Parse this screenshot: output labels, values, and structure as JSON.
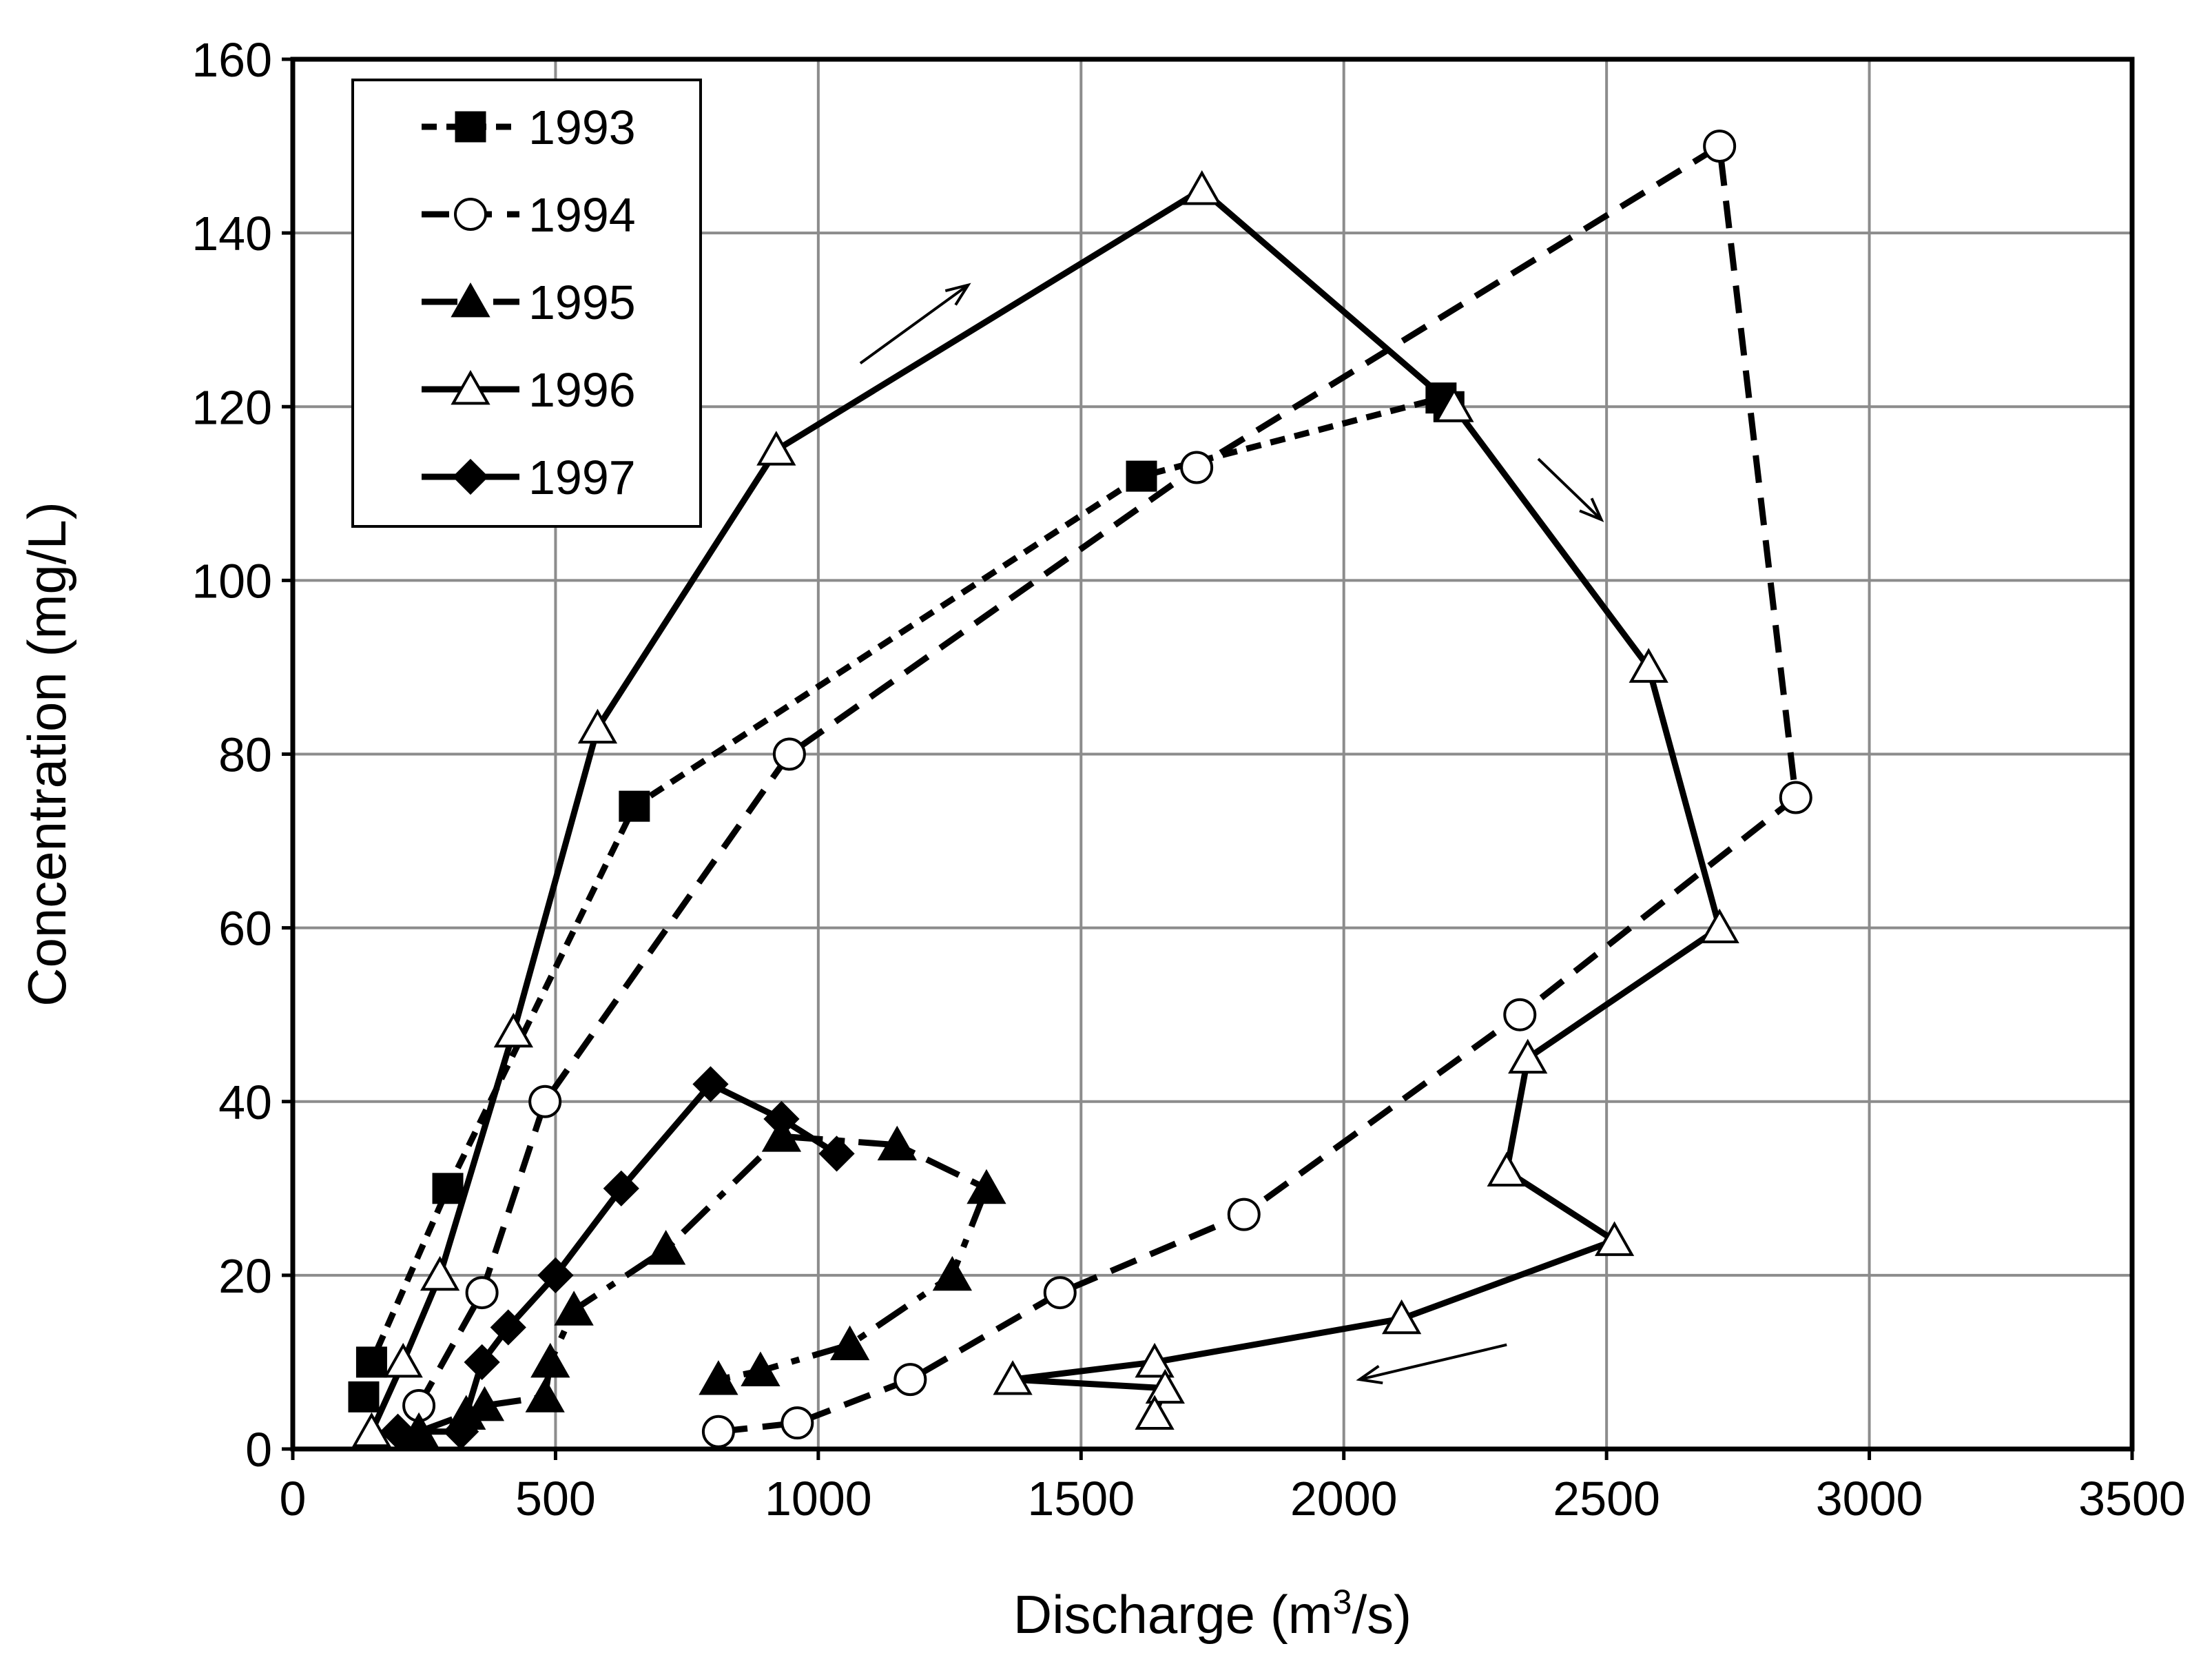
{
  "chart_data": {
    "type": "scatter",
    "title": "",
    "xlabel": "Discharge (m",
    "xlabel_sup": "3",
    "xlabel_tail": "/s)",
    "ylabel": "Concentration  (mg/L)",
    "xlim": [
      0,
      3500
    ],
    "ylim": [
      0,
      160
    ],
    "xticks": [
      "0",
      "500",
      "1000",
      "1500",
      "2000",
      "2500",
      "3000",
      "3500"
    ],
    "yticks": [
      "0",
      "20",
      "40",
      "60",
      "80",
      "100",
      "120",
      "140",
      "160"
    ],
    "grid": true,
    "legend_position": "top-left",
    "series": [
      {
        "name": "1993",
        "marker": "square-filled",
        "line": "short-dash",
        "x": [
          135,
          150,
          295,
          650,
          1615,
          2185,
          2200
        ],
        "y": [
          6,
          10,
          30,
          74,
          112,
          121,
          120
        ]
      },
      {
        "name": "1994",
        "marker": "circle-open",
        "line": "dash",
        "x": [
          240,
          360,
          480,
          945,
          1720,
          2715,
          2860,
          2335,
          1810,
          1460,
          1175,
          960,
          810
        ],
        "y": [
          5,
          18,
          40,
          80,
          113,
          150,
          75,
          50,
          27,
          18,
          8,
          3,
          2
        ]
      },
      {
        "name": "1995",
        "marker": "triangle-filled",
        "line": "dash-dot",
        "x": [
          240,
          330,
          365,
          480,
          490,
          535,
          710,
          930,
          1150,
          1320,
          1255,
          1060,
          890,
          810
        ],
        "y": [
          2,
          4,
          5,
          6,
          10,
          16,
          23,
          36,
          35,
          30,
          20,
          12,
          9,
          8
        ]
      },
      {
        "name": "1996",
        "marker": "triangle-open",
        "line": "solid",
        "x": [
          150,
          210,
          280,
          420,
          580,
          920,
          1730,
          2210,
          2580,
          2715,
          2350,
          2310,
          2515,
          2110,
          1640,
          1370,
          1660,
          1640
        ],
        "y": [
          2,
          10,
          20,
          48,
          83,
          115,
          145,
          120,
          90,
          60,
          45,
          32,
          24,
          15,
          10,
          8,
          7,
          4
        ]
      },
      {
        "name": "1997",
        "marker": "diamond-filled",
        "line": "solid",
        "x": [
          200,
          320,
          360,
          410,
          500,
          625,
          795,
          930,
          1035
        ],
        "y": [
          2,
          2,
          10,
          14,
          20,
          30,
          42,
          38,
          34
        ]
      }
    ],
    "annotations": [
      {
        "type": "arrow",
        "from": [
          1080,
          125
        ],
        "to": [
          1285,
          134
        ]
      },
      {
        "type": "arrow",
        "from": [
          2370,
          114
        ],
        "to": [
          2490,
          107
        ]
      },
      {
        "type": "arrow",
        "from": [
          2310,
          12
        ],
        "to": [
          2030,
          8
        ]
      }
    ]
  }
}
